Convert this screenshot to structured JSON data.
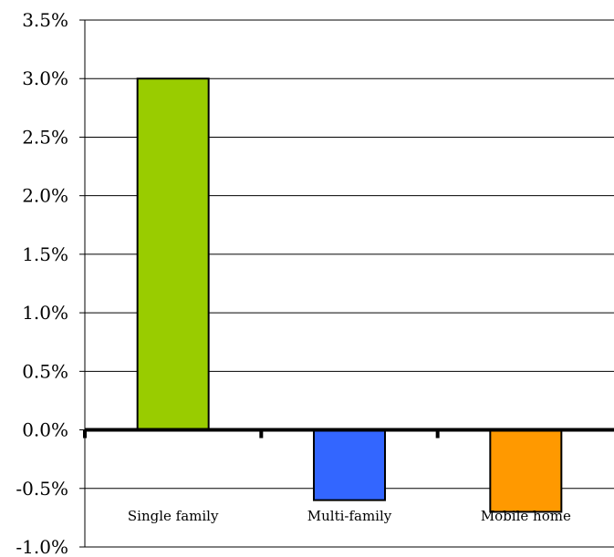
{
  "chart_data": {
    "type": "bar",
    "categories": [
      "Single family",
      "Multi-family",
      "Mobile home"
    ],
    "values": [
      3.0,
      -0.6,
      -0.7
    ],
    "colors": [
      "#99CC00",
      "#3366FF",
      "#FF9900"
    ],
    "yticks": [
      "3.5%",
      "3.0%",
      "2.5%",
      "2.0%",
      "1.5%",
      "1.0%",
      "0.5%",
      "0.0%",
      "-0.5%",
      "-1.0%"
    ],
    "ylim": [
      -1.0,
      3.5
    ],
    "grid": true,
    "legend": "none",
    "title": "",
    "xlabel": "",
    "ylabel": ""
  }
}
